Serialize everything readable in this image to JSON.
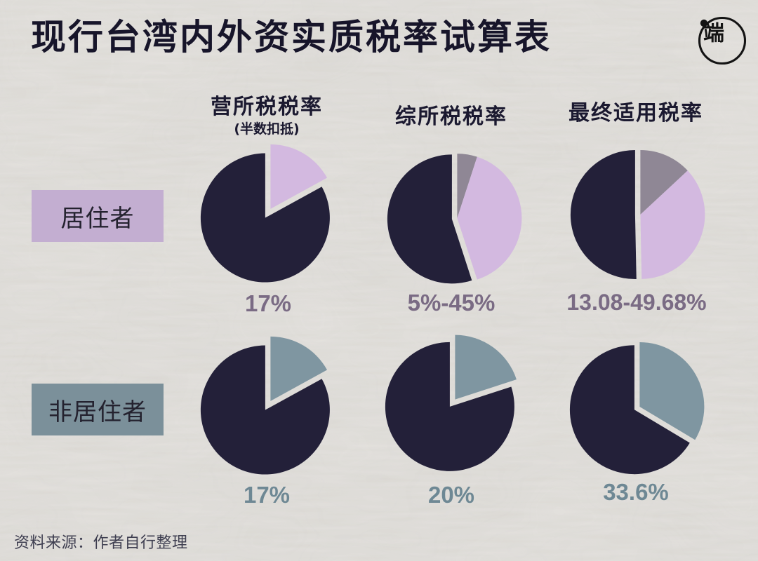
{
  "title": "现行台湾内外资实质税率试算表",
  "source_note": "资料来源：作者自行整理",
  "logo": {
    "glyph": "端"
  },
  "columns": [
    {
      "label": "营所税税率",
      "sublabel": "(半数扣抵)"
    },
    {
      "label": "综所税税率",
      "sublabel": ""
    },
    {
      "label": "最终适用税率",
      "sublabel": ""
    }
  ],
  "rows": [
    {
      "label": "居住者",
      "accent_color": "#d3b9e0",
      "box_color": "#c3aed1",
      "value_text_color": "#7a6b84"
    },
    {
      "label": "非居住者",
      "accent_color": "#7f96a1",
      "box_color": "#7b909a",
      "value_text_color": "#6e8894"
    }
  ],
  "colors": {
    "background": "#e8e6e2",
    "pie_base": "#232039",
    "secondary_gray": "#8f8795",
    "lavender": "#d3b9e0",
    "slate": "#7f96a1",
    "title_text": "#17152a"
  },
  "chart_data": [
    {
      "type": "pie",
      "row": "居住者",
      "column": "营所税税率(半数扣抵)",
      "value_label": "17%",
      "slices": [
        {
          "name": "tax-rate",
          "value": 17,
          "color": "#d3b9e0"
        },
        {
          "name": "remainder",
          "value": 83,
          "color": "#232039",
          "remainder": true
        }
      ]
    },
    {
      "type": "pie",
      "row": "居住者",
      "column": "综所税税率",
      "value_label": "5%-45%",
      "slices": [
        {
          "name": "tax-rate-min",
          "value": 5,
          "color": "#8f8795"
        },
        {
          "name": "tax-rate-max",
          "value": 40,
          "color": "#d3b9e0"
        },
        {
          "name": "remainder",
          "value": 55,
          "color": "#232039",
          "remainder": true
        }
      ]
    },
    {
      "type": "pie",
      "row": "居住者",
      "column": "最终适用税率",
      "value_label": "13.08-49.68%",
      "slices": [
        {
          "name": "tax-rate-min",
          "value": 13.08,
          "color": "#8f8795"
        },
        {
          "name": "tax-rate-max",
          "value": 36.6,
          "color": "#d3b9e0"
        },
        {
          "name": "remainder",
          "value": 50.32,
          "color": "#232039",
          "remainder": true
        }
      ]
    },
    {
      "type": "pie",
      "row": "非居住者",
      "column": "营所税税率(半数扣抵)",
      "value_label": "17%",
      "slices": [
        {
          "name": "tax-rate",
          "value": 17,
          "color": "#7f96a1"
        },
        {
          "name": "remainder",
          "value": 83,
          "color": "#232039",
          "remainder": true
        }
      ]
    },
    {
      "type": "pie",
      "row": "非居住者",
      "column": "综所税税率",
      "value_label": "20%",
      "slices": [
        {
          "name": "tax-rate",
          "value": 20,
          "color": "#7f96a1"
        },
        {
          "name": "remainder",
          "value": 80,
          "color": "#232039",
          "remainder": true
        }
      ]
    },
    {
      "type": "pie",
      "row": "非居住者",
      "column": "最终适用税率",
      "value_label": "33.6%",
      "slices": [
        {
          "name": "tax-rate",
          "value": 33.6,
          "color": "#7f96a1"
        },
        {
          "name": "remainder",
          "value": 66.4,
          "color": "#232039",
          "remainder": true
        }
      ]
    }
  ]
}
